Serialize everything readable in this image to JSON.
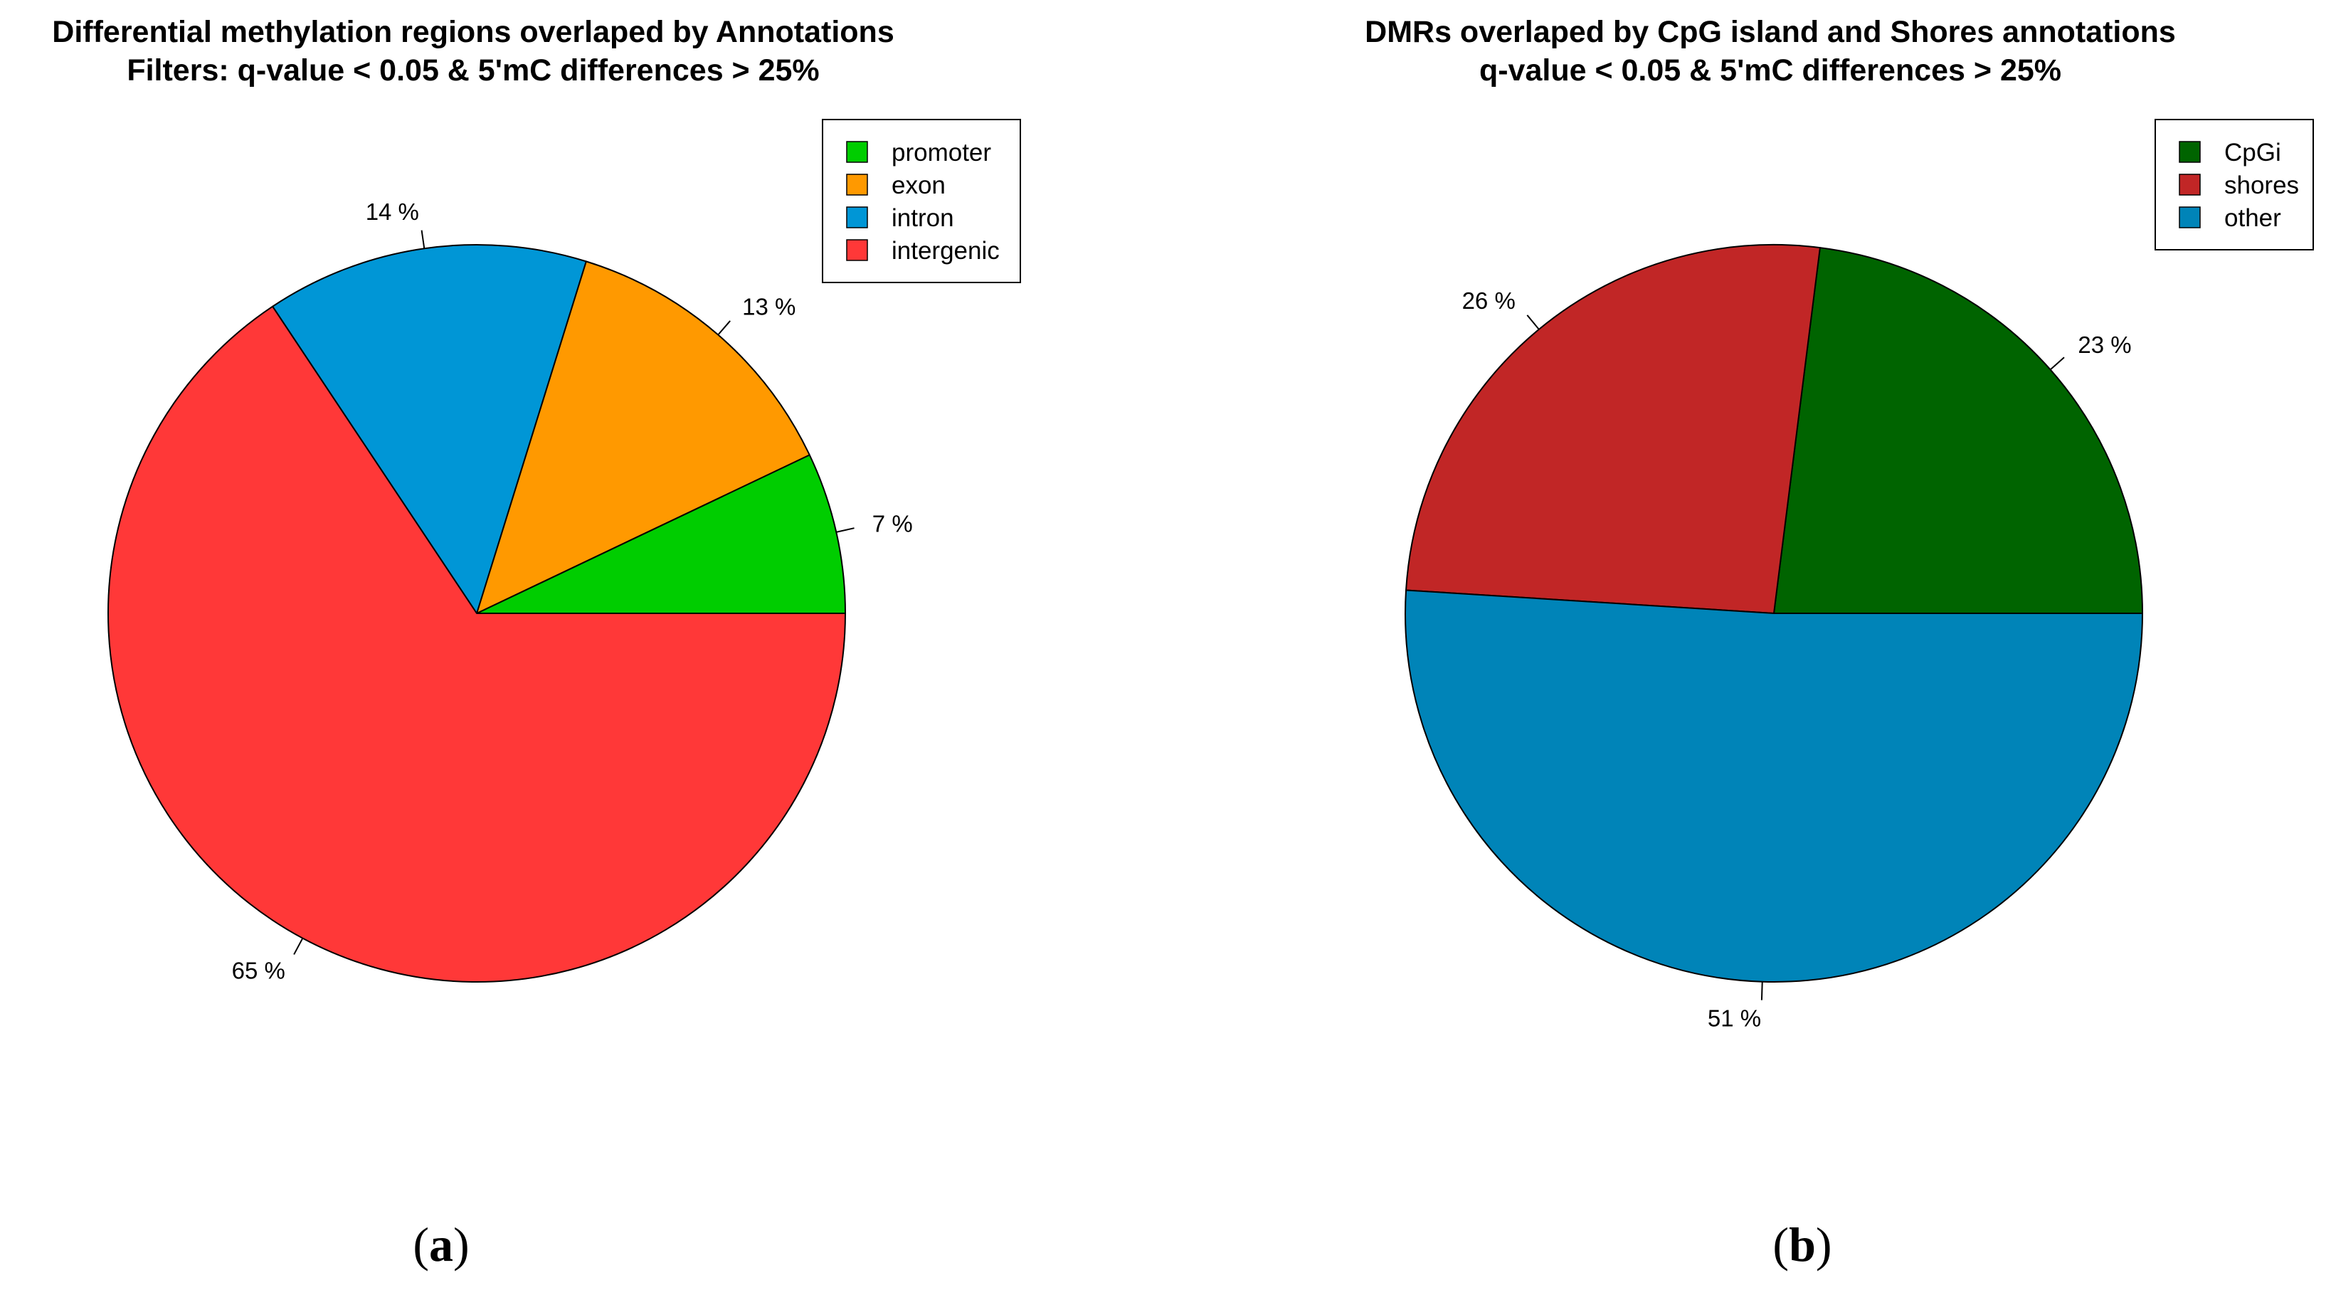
{
  "chart_data": [
    {
      "type": "pie",
      "panel_label": {
        "open": "(",
        "letter": "a",
        "close": ")"
      },
      "title": "Differential methylation regions overlaped by Annotations",
      "subtitle": "Filters: q-value < 0.05 & 5'mC differences > 25%",
      "slices": [
        {
          "label": "promoter",
          "value": 7,
          "display": "7 %",
          "color": "#00CD00"
        },
        {
          "label": "exon",
          "value": 13,
          "display": "13 %",
          "color": "#FF9900"
        },
        {
          "label": "intron",
          "value": 14,
          "display": "14 %",
          "color": "#0096D6"
        },
        {
          "label": "intergenic",
          "value": 65,
          "display": "65 %",
          "color": "#FF3838"
        }
      ],
      "legend_position": "top-right",
      "start": "3 o'clock",
      "direction": "counterclockwise"
    },
    {
      "type": "pie",
      "panel_label": {
        "open": "(",
        "letter": "b",
        "close": ")"
      },
      "title": "DMRs overlaped by CpG island and Shores annotations",
      "subtitle": "q-value < 0.05 & 5'mC differences > 25%",
      "slices": [
        {
          "label": "CpGi",
          "value": 23,
          "display": "23 %",
          "color": "#006400"
        },
        {
          "label": "shores",
          "value": 26,
          "display": "26 %",
          "color": "#C12626"
        },
        {
          "label": "other",
          "value": 51,
          "display": "51 %",
          "color": "#0084B8"
        }
      ],
      "legend_position": "top-right",
      "start": "3 o'clock",
      "direction": "counterclockwise"
    }
  ]
}
